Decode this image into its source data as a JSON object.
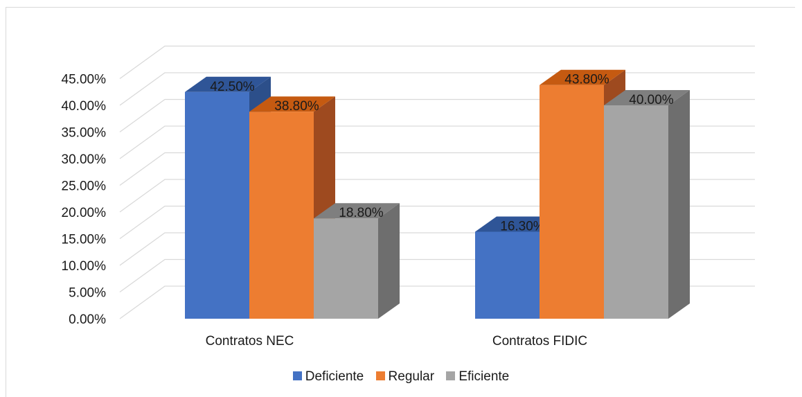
{
  "chart_data": {
    "type": "bar",
    "three_d": true,
    "categories": [
      "Contratos NEC",
      "Contratos FIDIC"
    ],
    "series": [
      {
        "name": "Deficiente",
        "values": [
          42.5,
          16.3
        ],
        "labels": [
          "42.50%",
          "16.30%"
        ],
        "color": "#4472c4",
        "top_color": "#2f5597",
        "side_color": "#2c4f8a"
      },
      {
        "name": "Regular",
        "values": [
          38.8,
          43.8
        ],
        "labels": [
          "38.80%",
          "43.80%"
        ],
        "color": "#ed7d31",
        "top_color": "#c55a11",
        "side_color": "#9e4a1f"
      },
      {
        "name": "Eficiente",
        "values": [
          18.8,
          40.0
        ],
        "labels": [
          "18.80%",
          "40.00%"
        ],
        "color": "#a5a5a5",
        "top_color": "#7f7f7f",
        "side_color": "#6e6e6e"
      }
    ],
    "ylim": [
      0,
      45
    ],
    "yticks": [
      "0.00%",
      "5.00%",
      "10.00%",
      "15.00%",
      "20.00%",
      "25.00%",
      "30.00%",
      "35.00%",
      "40.00%",
      "45.00%"
    ],
    "grid": true,
    "legend_position": "bottom"
  }
}
